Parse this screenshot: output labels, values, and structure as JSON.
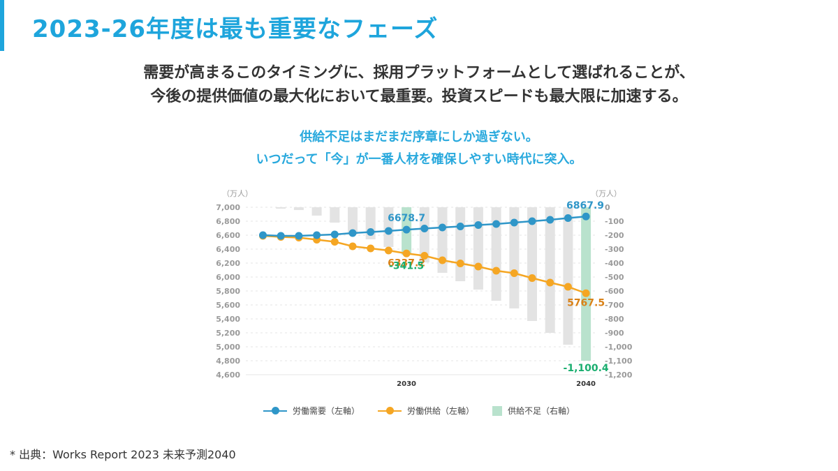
{
  "title": "2023-26年度は最も重要なフェーズ",
  "lead": [
    "需要が高まるこのタイミングに、採用プラットフォームとして選ばれることが、",
    "今後の提供価値の最大化において最重要。投資スピードも最大限に加速する。"
  ],
  "subheading": [
    "供給不足はまだまだ序章にしか過ぎない。",
    "いつだって「今」が一番人材を確保しやすい時代に突入。"
  ],
  "footer": "* 出典：Works Report 2023 未来予測2040",
  "colors": {
    "accent": "#1ea5dc",
    "demand": "#2f96c8",
    "supply": "#f5a623",
    "shortage_highlight": "#b9e2cd",
    "shortage_bar": "#e3e3e3",
    "shortage_label": "#1aae6f",
    "supply_label": "#d98218"
  },
  "chart_data": {
    "type": "line",
    "title": "",
    "x": [
      2022,
      2023,
      2024,
      2025,
      2026,
      2027,
      2028,
      2029,
      2030,
      2031,
      2032,
      2033,
      2034,
      2035,
      2036,
      2037,
      2038,
      2039,
      2040
    ],
    "x_tick_labels": [
      {
        "x": 2030,
        "label": "2030"
      },
      {
        "x": 2040,
        "label": "2040"
      }
    ],
    "left_axis": {
      "unit_label": "（万人）",
      "ylim": [
        4600,
        7000
      ],
      "ticks": [
        7000,
        6800,
        6600,
        6400,
        6200,
        6000,
        5800,
        5600,
        5400,
        5200,
        5000,
        4800,
        4600
      ],
      "tick_labels": [
        "7,000",
        "6,800",
        "6,600",
        "6,400",
        "6,200",
        "6,000",
        "5,800",
        "5,600",
        "5,400",
        "5,200",
        "5,000",
        "4,800",
        "4,600"
      ]
    },
    "right_axis": {
      "unit_label": "（万人）",
      "ylim": [
        -1200,
        0
      ],
      "ticks": [
        0,
        -100,
        -200,
        -300,
        -400,
        -500,
        -600,
        -700,
        -800,
        -900,
        -1000,
        -1100,
        -1200
      ],
      "tick_labels": [
        "0",
        "-100",
        "-200",
        "-300",
        "-400",
        "-500",
        "-600",
        "-700",
        "-800",
        "-900",
        "-1,000",
        "-1,100",
        "-1,200"
      ]
    },
    "grid": true,
    "legend_position": "bottom",
    "series": [
      {
        "name": "労働需要（左軸）",
        "type": "line",
        "axis": "left",
        "values": [
          6600,
          6590,
          6590,
          6600,
          6610,
          6630,
          6645,
          6660,
          6678.7,
          6695,
          6710,
          6725,
          6745,
          6760,
          6780,
          6800,
          6820,
          6845,
          6867.9
        ]
      },
      {
        "name": "労働供給（左軸）",
        "type": "line",
        "axis": "left",
        "values": [
          6590,
          6575,
          6565,
          6535,
          6505,
          6440,
          6410,
          6380,
          6337.2,
          6305,
          6240,
          6195,
          6150,
          6090,
          6055,
          5985,
          5920,
          5860,
          5767.5
        ]
      },
      {
        "name": "供給不足（右軸）",
        "type": "bar",
        "axis": "right",
        "values": [
          null,
          -10,
          -20,
          -60,
          -110,
          -195,
          -230,
          -285,
          -341.5,
          -395,
          -470,
          -530,
          -590,
          -670,
          -725,
          -815,
          -900,
          -985,
          -1100.4
        ],
        "highlight": [
          2030,
          2040
        ]
      }
    ],
    "annotations": [
      {
        "series": "労働需要（左軸）",
        "x": 2030,
        "text": "6678.7"
      },
      {
        "series": "労働供給（左軸）",
        "x": 2030,
        "text": "6337.2"
      },
      {
        "series": "供給不足（右軸）",
        "x": 2030,
        "text": "-341.5"
      },
      {
        "series": "労働需要（左軸）",
        "x": 2040,
        "text": "6867.9"
      },
      {
        "series": "労働供給（左軸）",
        "x": 2040,
        "text": "5767.5"
      },
      {
        "series": "供給不足（右軸）",
        "x": 2040,
        "text": "-1,100.4"
      }
    ]
  }
}
